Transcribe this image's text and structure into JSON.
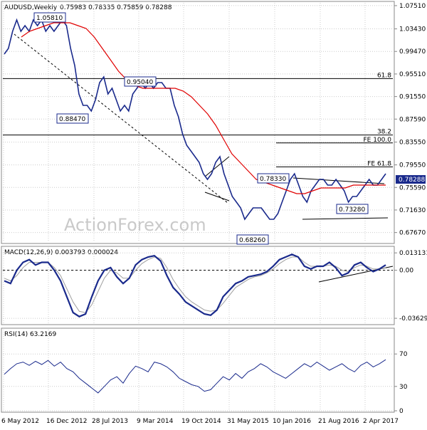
{
  "chart_data": {
    "type": "line",
    "instrument": "AUDUSD,Weekly",
    "ohlc_header": "0.75983 0.78335 0.75859 0.78288",
    "last_price_label": "0.78288",
    "watermark": "ActionForex.com",
    "x_tick_labels": [
      "6 May 2012",
      "16 Dec 2012",
      "28 Jul 2013",
      "9 Mar 2014",
      "19 Oct 2014",
      "31 May 2015",
      "10 Jan 2016",
      "21 Aug 2016",
      "2 Apr 2017"
    ],
    "colors": {
      "price": "#1a2a8c",
      "ma": "#e00000",
      "signal": "#a0a0a0",
      "grid": "#cccccc",
      "fib": "#000000"
    },
    "price_panel": {
      "ylim": [
        0.66,
        1.08
      ],
      "tick_labels": [
        "1.07510",
        "1.03430",
        "0.99470",
        "0.95510",
        "0.91550",
        "0.87590",
        "0.83550",
        "0.79550",
        "0.75590",
        "0.71630",
        "0.67670"
      ],
      "tick_values": [
        1.0751,
        1.0343,
        0.9947,
        0.9551,
        0.9155,
        0.8759,
        0.8355,
        0.7955,
        0.7559,
        0.7163,
        0.6767
      ],
      "series": [
        {
          "name": "",
          "values": [
            0.99,
            1.0,
            1.03,
            1.05,
            1.03,
            1.04,
            1.03,
            1.05,
            1.04,
            1.05,
            1.03,
            1.04,
            1.03,
            1.04,
            1.05,
            1.04,
            1.0,
            0.97,
            0.92,
            0.9,
            0.9,
            0.89,
            0.91,
            0.94,
            0.95,
            0.92,
            0.93,
            0.91,
            0.89,
            0.9,
            0.89,
            0.92,
            0.93,
            0.94,
            0.93,
            0.94,
            0.93,
            0.94,
            0.94,
            0.93,
            0.93,
            0.9,
            0.88,
            0.85,
            0.83,
            0.82,
            0.81,
            0.8,
            0.78,
            0.77,
            0.78,
            0.8,
            0.81,
            0.78,
            0.76,
            0.74,
            0.73,
            0.72,
            0.7,
            0.71,
            0.72,
            0.72,
            0.72,
            0.71,
            0.7,
            0.7,
            0.71,
            0.73,
            0.75,
            0.77,
            0.78,
            0.76,
            0.74,
            0.73,
            0.75,
            0.76,
            0.77,
            0.77,
            0.76,
            0.76,
            0.77,
            0.76,
            0.75,
            0.73,
            0.74,
            0.74,
            0.75,
            0.76,
            0.77,
            0.76,
            0.76,
            0.77,
            0.78
          ]
        },
        {
          "name": "",
          "values": [
            1.02,
            1.03,
            1.035,
            1.04,
            1.045,
            1.045,
            1.045,
            1.04,
            1.035,
            1.02,
            1.0,
            0.98,
            0.96,
            0.945,
            0.935,
            0.93,
            0.93,
            0.93,
            0.93,
            0.93,
            0.925,
            0.915,
            0.9,
            0.885,
            0.865,
            0.84,
            0.815,
            0.8,
            0.785,
            0.77,
            0.765,
            0.76,
            0.755,
            0.75,
            0.745,
            0.745,
            0.75,
            0.755,
            0.755,
            0.755,
            0.755,
            0.76,
            0.76,
            0.76,
            0.76,
            0.76
          ]
        }
      ],
      "levels": [
        {
          "label": "61.8",
          "value": 0.947
        },
        {
          "label": "38.2",
          "value": 0.848
        },
        {
          "label": "FE 100.0",
          "value": 0.834
        },
        {
          "label": "FE 61.8",
          "value": 0.792
        }
      ],
      "annotations": [
        "1.05810",
        "0.95040",
        "0.88470",
        "0.78330",
        "0.73280",
        "0.68260"
      ]
    },
    "macd_panel": {
      "label": "MACD(12,26,9) 0.003793 0.000024",
      "ylim": [
        -0.04,
        0.017
      ],
      "tick_labels": [
        "0.013131",
        "0.00",
        "-0.03629"
      ],
      "tick_values": [
        0.013131,
        0.0,
        -0.03629
      ],
      "series": [
        {
          "name": "",
          "values": [
            -0.008,
            -0.01,
            0.0,
            0.006,
            0.008,
            0.004,
            0.006,
            0.006,
            0.0,
            -0.008,
            -0.02,
            -0.032,
            -0.035,
            -0.033,
            -0.02,
            -0.008,
            0.0,
            0.002,
            -0.005,
            -0.01,
            -0.006,
            0.004,
            0.008,
            0.01,
            0.011,
            0.007,
            -0.004,
            -0.013,
            -0.018,
            -0.024,
            -0.027,
            -0.03,
            -0.033,
            -0.034,
            -0.03,
            -0.02,
            -0.015,
            -0.01,
            -0.008,
            -0.005,
            -0.004,
            -0.003,
            -0.001,
            0.003,
            0.008,
            0.01,
            0.012,
            0.01,
            0.003,
            0.001,
            0.003,
            0.003,
            0.006,
            0.002,
            -0.004,
            -0.002,
            0.004,
            0.006,
            0.002,
            -0.001,
            0.001,
            0.004
          ]
        },
        {
          "name": "",
          "values": [
            -0.006,
            -0.008,
            -0.004,
            0.002,
            0.006,
            0.006,
            0.006,
            0.006,
            0.002,
            -0.004,
            -0.014,
            -0.024,
            -0.031,
            -0.032,
            -0.026,
            -0.016,
            -0.006,
            0.0,
            -0.002,
            -0.006,
            -0.006,
            0.0,
            0.005,
            0.008,
            0.01,
            0.009,
            0.002,
            -0.007,
            -0.014,
            -0.02,
            -0.024,
            -0.027,
            -0.03,
            -0.031,
            -0.03,
            -0.025,
            -0.019,
            -0.013,
            -0.01,
            -0.007,
            -0.005,
            -0.004,
            -0.002,
            0.001,
            0.005,
            0.008,
            0.01,
            0.01,
            0.006,
            0.003,
            0.003,
            0.003,
            0.004,
            0.003,
            0.0,
            -0.001,
            0.002,
            0.004,
            0.003,
            0.001,
            0.001,
            0.002
          ]
        }
      ]
    },
    "rsi_panel": {
      "label": "RSI(14) 63.2169",
      "ylim": [
        0,
        100
      ],
      "tick_labels": [
        "70",
        "30",
        "0"
      ],
      "tick_values": [
        70,
        30,
        0
      ],
      "series": [
        {
          "name": "",
          "values": [
            45,
            52,
            58,
            60,
            56,
            61,
            57,
            62,
            55,
            60,
            52,
            48,
            40,
            34,
            28,
            22,
            30,
            38,
            42,
            34,
            46,
            55,
            52,
            48,
            60,
            58,
            54,
            48,
            40,
            36,
            32,
            30,
            24,
            26,
            34,
            42,
            38,
            46,
            40,
            48,
            52,
            58,
            54,
            48,
            44,
            40,
            46,
            52,
            58,
            54,
            60,
            55,
            50,
            54,
            58,
            52,
            48,
            56,
            60,
            54,
            58,
            63
          ]
        }
      ]
    }
  }
}
